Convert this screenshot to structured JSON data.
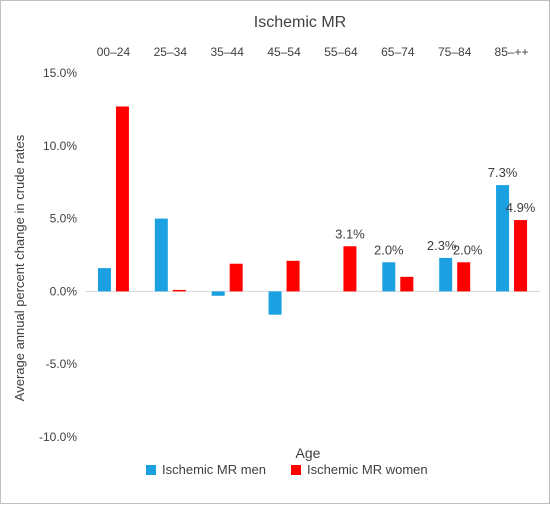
{
  "chart_data": {
    "type": "bar",
    "title": "Ischemic MR",
    "xlabel": "Age",
    "ylabel": "Average annual percent change in crude rates",
    "categories": [
      "00–24",
      "25–34",
      "35–44",
      "45–54",
      "55–64",
      "65–74",
      "75–84",
      "85–++"
    ],
    "category_axis_position": "top",
    "ylim": [
      -10,
      15
    ],
    "yticks": [
      15,
      10,
      5,
      0,
      -5,
      -10
    ],
    "ytick_labels": [
      "15.0%",
      "10.0%",
      "5.0%",
      "0.0%",
      "-5.0%",
      "-10.0%"
    ],
    "grid": false,
    "legend_position": "bottom",
    "series": [
      {
        "name": "Ischemic MR men",
        "color": "#1BA1E2",
        "values": [
          1.6,
          5.0,
          -0.3,
          -1.6,
          0.0,
          2.0,
          2.3,
          7.3
        ],
        "data_labels": [
          "",
          "",
          "",
          "",
          "",
          "2.0%",
          "2.3%",
          "7.3%"
        ]
      },
      {
        "name": "Ischemic MR women",
        "color": "#FF0000",
        "values": [
          12.7,
          0.1,
          1.9,
          2.1,
          3.1,
          1.0,
          2.0,
          4.9
        ],
        "data_labels": [
          "",
          "",
          "",
          "",
          "3.1%",
          "",
          "2.0%",
          "4.9%"
        ]
      }
    ]
  }
}
